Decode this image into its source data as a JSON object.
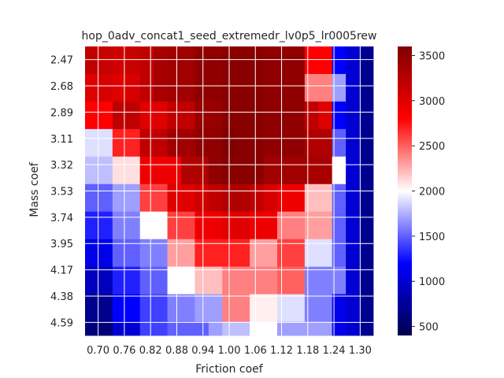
{
  "chart_data": {
    "type": "heatmap",
    "title": "hop_0adv_concat1_seed_extremedr_lv0p5_lr0005rew",
    "xlabel": "Friction coef",
    "ylabel": "Mass coef",
    "x_ticks": [
      "0.70",
      "0.76",
      "0.82",
      "0.88",
      "0.94",
      "1.00",
      "1.06",
      "1.12",
      "1.18",
      "1.24",
      "1.30"
    ],
    "y_ticks": [
      "2.47",
      "2.68",
      "2.89",
      "3.11",
      "3.32",
      "3.53",
      "3.74",
      "3.95",
      "4.17",
      "4.38",
      "4.59"
    ],
    "x_values": [
      0.7,
      0.73,
      0.76,
      0.79,
      0.82,
      0.85,
      0.88,
      0.91,
      0.94,
      0.97,
      1.0,
      1.03,
      1.06,
      1.09,
      1.12,
      1.15,
      1.18,
      1.21,
      1.24,
      1.27,
      1.3
    ],
    "y_values": [
      2.47,
      2.575,
      2.68,
      2.785,
      2.89,
      3.0,
      3.11,
      3.215,
      3.32,
      3.425,
      3.53,
      3.635,
      3.74,
      3.845,
      3.95,
      4.06,
      4.17,
      4.275,
      4.38,
      4.485,
      4.59
    ],
    "colorbar": {
      "ticks": [
        500,
        1000,
        1500,
        2000,
        2500,
        3000,
        3500
      ],
      "vmin": 400,
      "vmax": 3600,
      "colormap": "seismic"
    },
    "grid": true,
    "values": [
      [
        3200,
        3150,
        3100,
        3150,
        3200,
        3350,
        3400,
        3400,
        3500,
        3500,
        3550,
        3550,
        3550,
        3500,
        3500,
        3500,
        2800,
        2800,
        1200,
        1000,
        700
      ],
      [
        3200,
        3150,
        3100,
        3150,
        3200,
        3350,
        3400,
        3400,
        3500,
        3500,
        3550,
        3550,
        3550,
        3500,
        3500,
        3500,
        2800,
        2800,
        1200,
        1000,
        700
      ],
      [
        3000,
        3050,
        3000,
        3050,
        3200,
        3350,
        3400,
        3400,
        3500,
        3500,
        3550,
        3550,
        3550,
        3500,
        3500,
        3500,
        2400,
        2400,
        1700,
        1000,
        700
      ],
      [
        3000,
        3050,
        3000,
        3050,
        3200,
        3350,
        3400,
        3400,
        3500,
        3500,
        3550,
        3550,
        3550,
        3500,
        3500,
        3500,
        2400,
        2400,
        1700,
        1000,
        700
      ],
      [
        2800,
        2800,
        3200,
        3200,
        3000,
        3000,
        3200,
        3200,
        3450,
        3450,
        3550,
        3550,
        3550,
        3500,
        3500,
        3500,
        3200,
        3000,
        1200,
        1000,
        700
      ],
      [
        2800,
        2800,
        3200,
        3200,
        3000,
        3000,
        3200,
        3200,
        3450,
        3450,
        3550,
        3550,
        3550,
        3500,
        3500,
        3500,
        3200,
        3000,
        1200,
        1000,
        700
      ],
      [
        1900,
        1900,
        2700,
        2700,
        3200,
        3200,
        3400,
        3400,
        3500,
        3500,
        3600,
        3550,
        3550,
        3500,
        3500,
        3500,
        3300,
        3300,
        1500,
        1000,
        700
      ],
      [
        1900,
        1900,
        2700,
        2700,
        3200,
        3200,
        3400,
        3400,
        3500,
        3500,
        3600,
        3550,
        3550,
        3500,
        3500,
        3500,
        3300,
        3300,
        1500,
        1000,
        700
      ],
      [
        1800,
        1800,
        2100,
        2100,
        2900,
        2900,
        2900,
        3300,
        3300,
        3500,
        3550,
        3550,
        3550,
        3400,
        3400,
        3400,
        3350,
        3350,
        2000,
        1000,
        700
      ],
      [
        1800,
        1800,
        2100,
        2100,
        2900,
        2900,
        2900,
        3300,
        3300,
        3500,
        3550,
        3550,
        3550,
        3400,
        3400,
        3400,
        3350,
        3350,
        2000,
        1000,
        700
      ],
      [
        1500,
        1500,
        1700,
        1700,
        2600,
        2600,
        3000,
        3000,
        3100,
        3200,
        3300,
        3300,
        3200,
        3050,
        2900,
        2900,
        2200,
        2200,
        1500,
        1000,
        700
      ],
      [
        1500,
        1500,
        1700,
        1700,
        2600,
        2600,
        3000,
        3000,
        3100,
        3200,
        3300,
        3300,
        3200,
        3050,
        2900,
        2900,
        2200,
        2200,
        1500,
        1000,
        700
      ],
      [
        1300,
        1300,
        1600,
        1600,
        2000,
        2000,
        2600,
        2600,
        2900,
        2900,
        3000,
        3000,
        2900,
        2900,
        2400,
        2400,
        2300,
        2300,
        1500,
        1000,
        700
      ],
      [
        1300,
        1300,
        1600,
        1600,
        2000,
        2000,
        2600,
        2600,
        2900,
        2900,
        3000,
        3000,
        2900,
        2900,
        2400,
        2400,
        2300,
        2300,
        1500,
        1000,
        700
      ],
      [
        1100,
        1100,
        1500,
        1500,
        1600,
        1600,
        2300,
        2300,
        2700,
        2700,
        2700,
        2700,
        2300,
        2300,
        2600,
        2600,
        1900,
        1900,
        1500,
        1000,
        700
      ],
      [
        1100,
        1100,
        1500,
        1500,
        1600,
        1600,
        2300,
        2300,
        2700,
        2700,
        2700,
        2700,
        2300,
        2300,
        2600,
        2600,
        1900,
        1900,
        1500,
        1000,
        700
      ],
      [
        900,
        900,
        1300,
        1300,
        1500,
        1500,
        2000,
        2000,
        2200,
        2200,
        2400,
        2400,
        2400,
        2400,
        2500,
        2500,
        1600,
        1600,
        1600,
        1000,
        700
      ],
      [
        900,
        900,
        1300,
        1300,
        1500,
        1500,
        2000,
        2000,
        2200,
        2200,
        2400,
        2400,
        2400,
        2400,
        2500,
        2500,
        1600,
        1600,
        1600,
        1000,
        700
      ],
      [
        700,
        700,
        1200,
        1200,
        1400,
        1400,
        1600,
        1600,
        1700,
        1700,
        2400,
        2400,
        2050,
        2050,
        1900,
        1900,
        1600,
        1600,
        1100,
        1000,
        700
      ],
      [
        700,
        700,
        1200,
        1200,
        1400,
        1400,
        1600,
        1600,
        1700,
        1700,
        2400,
        2400,
        2050,
        2050,
        1900,
        1900,
        1600,
        1600,
        1100,
        1000,
        700
      ],
      [
        600,
        600,
        1000,
        1000,
        1400,
        1400,
        1500,
        1500,
        1500,
        1700,
        1800,
        1800,
        2000,
        2000,
        1700,
        1700,
        1700,
        1700,
        1100,
        1000,
        700
      ]
    ]
  }
}
